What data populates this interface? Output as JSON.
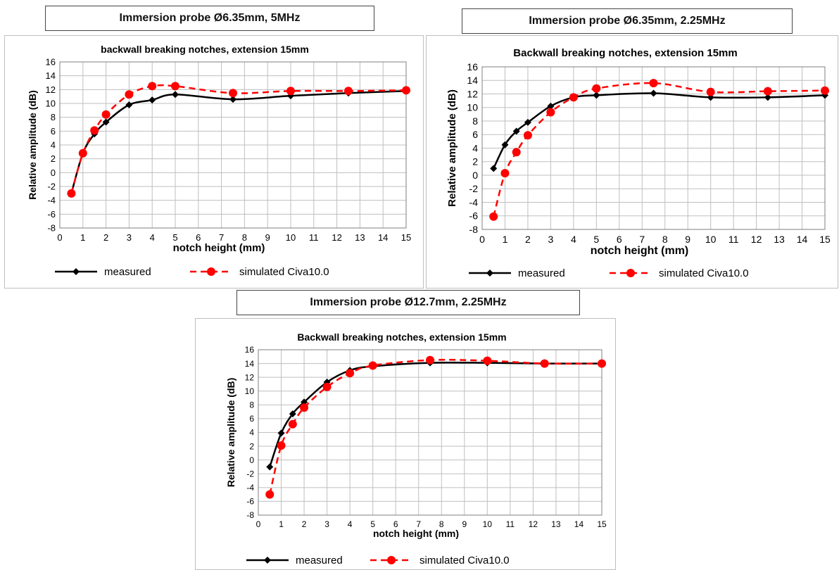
{
  "colors": {
    "measured": "#000000",
    "simulated": "#ff0000",
    "grid": "#bfbfbf",
    "axis": "#7f7f7f"
  },
  "legend": {
    "measured": "measured",
    "simulated": "simulated Civa10.0"
  },
  "chart_data": [
    {
      "type": "line",
      "probe_title": "Immersion probe Ø6.35mm, 5MHz",
      "title": "backwall breaking notches, extension 15mm",
      "xlabel": "notch height (mm)",
      "ylabel": "Relative amplitude (dB)",
      "xlim": [
        0,
        15
      ],
      "ylim": [
        -8,
        16
      ],
      "xticks": [
        "0",
        "1",
        "2",
        "3",
        "4",
        "5",
        "6",
        "7",
        "8",
        "9",
        "10",
        "11",
        "12",
        "13",
        "14",
        "15"
      ],
      "yticks": [
        "-8",
        "-6",
        "-4",
        "-2",
        "0",
        "2",
        "4",
        "6",
        "8",
        "10",
        "12",
        "14",
        "16"
      ],
      "grid": true,
      "legend_position": "bottom",
      "series": [
        {
          "name": "measured",
          "x": [
            0.5,
            1,
            1.5,
            2,
            3,
            4,
            5,
            7.5,
            10,
            12.5,
            15
          ],
          "y": [
            -3,
            2.8,
            5.6,
            7.3,
            9.8,
            10.5,
            11.3,
            10.6,
            11.1,
            11.5,
            11.8
          ]
        },
        {
          "name": "simulated Civa10.0",
          "x": [
            0.5,
            1,
            1.5,
            2,
            3,
            4,
            5,
            7.5,
            10,
            12.5,
            15
          ],
          "y": [
            -3,
            2.8,
            6.1,
            8.4,
            11.3,
            12.5,
            12.5,
            11.5,
            11.8,
            11.8,
            11.9
          ]
        }
      ]
    },
    {
      "type": "line",
      "probe_title": "Immersion probe Ø6.35mm, 2.25MHz",
      "title": "Backwall breaking notches, extension 15mm",
      "xlabel": "notch height (mm)",
      "ylabel": "Relative amplitude (dB)",
      "xlim": [
        0,
        15
      ],
      "ylim": [
        -8,
        16
      ],
      "xticks": [
        "0",
        "1",
        "2",
        "3",
        "4",
        "5",
        "6",
        "7",
        "8",
        "9",
        "10",
        "11",
        "12",
        "13",
        "14",
        "15"
      ],
      "yticks": [
        "-8",
        "-6",
        "-4",
        "-2",
        "0",
        "2",
        "4",
        "6",
        "8",
        "10",
        "12",
        "14",
        "16"
      ],
      "grid": true,
      "legend_position": "bottom",
      "series": [
        {
          "name": "measured",
          "x": [
            0.5,
            1,
            1.5,
            2,
            3,
            4,
            5,
            7.5,
            10,
            12.5,
            15
          ],
          "y": [
            1,
            4.5,
            6.5,
            7.8,
            10.2,
            11.5,
            11.8,
            12.1,
            11.5,
            11.5,
            11.8
          ]
        },
        {
          "name": "simulated Civa10.0",
          "x": [
            0.5,
            1,
            1.5,
            2,
            3,
            4,
            5,
            7.5,
            10,
            12.5,
            15
          ],
          "y": [
            -6.1,
            0.3,
            3.4,
            5.9,
            9.3,
            11.5,
            12.8,
            13.6,
            12.3,
            12.4,
            12.5
          ]
        }
      ]
    },
    {
      "type": "line",
      "probe_title": "Immersion probe Ø12.7mm, 2.25MHz",
      "title": "Backwall breaking notches, extension 15mm",
      "xlabel": "notch height (mm)",
      "ylabel": "Relative amplitude (dB)",
      "xlim": [
        0,
        15
      ],
      "ylim": [
        -8,
        16
      ],
      "xticks": [
        "0",
        "1",
        "2",
        "3",
        "4",
        "5",
        "6",
        "7",
        "8",
        "9",
        "10",
        "11",
        "12",
        "13",
        "14",
        "15"
      ],
      "yticks": [
        "-8",
        "-6",
        "-4",
        "-2",
        "0",
        "2",
        "4",
        "6",
        "8",
        "10",
        "12",
        "14",
        "16"
      ],
      "grid": true,
      "legend_position": "bottom",
      "series": [
        {
          "name": "measured",
          "x": [
            0.5,
            1,
            1.5,
            2,
            3,
            4,
            5,
            7.5,
            10,
            12.5,
            15
          ],
          "y": [
            -1,
            3.9,
            6.7,
            8.4,
            11.3,
            13,
            13.6,
            14.1,
            14.1,
            14,
            14
          ]
        },
        {
          "name": "simulated Civa10.0",
          "x": [
            0.5,
            1,
            1.5,
            2,
            3,
            4,
            5,
            7.5,
            10,
            12.5,
            15
          ],
          "y": [
            -5,
            2.1,
            5.2,
            7.6,
            10.6,
            12.6,
            13.7,
            14.5,
            14.4,
            14,
            14
          ]
        }
      ]
    }
  ]
}
